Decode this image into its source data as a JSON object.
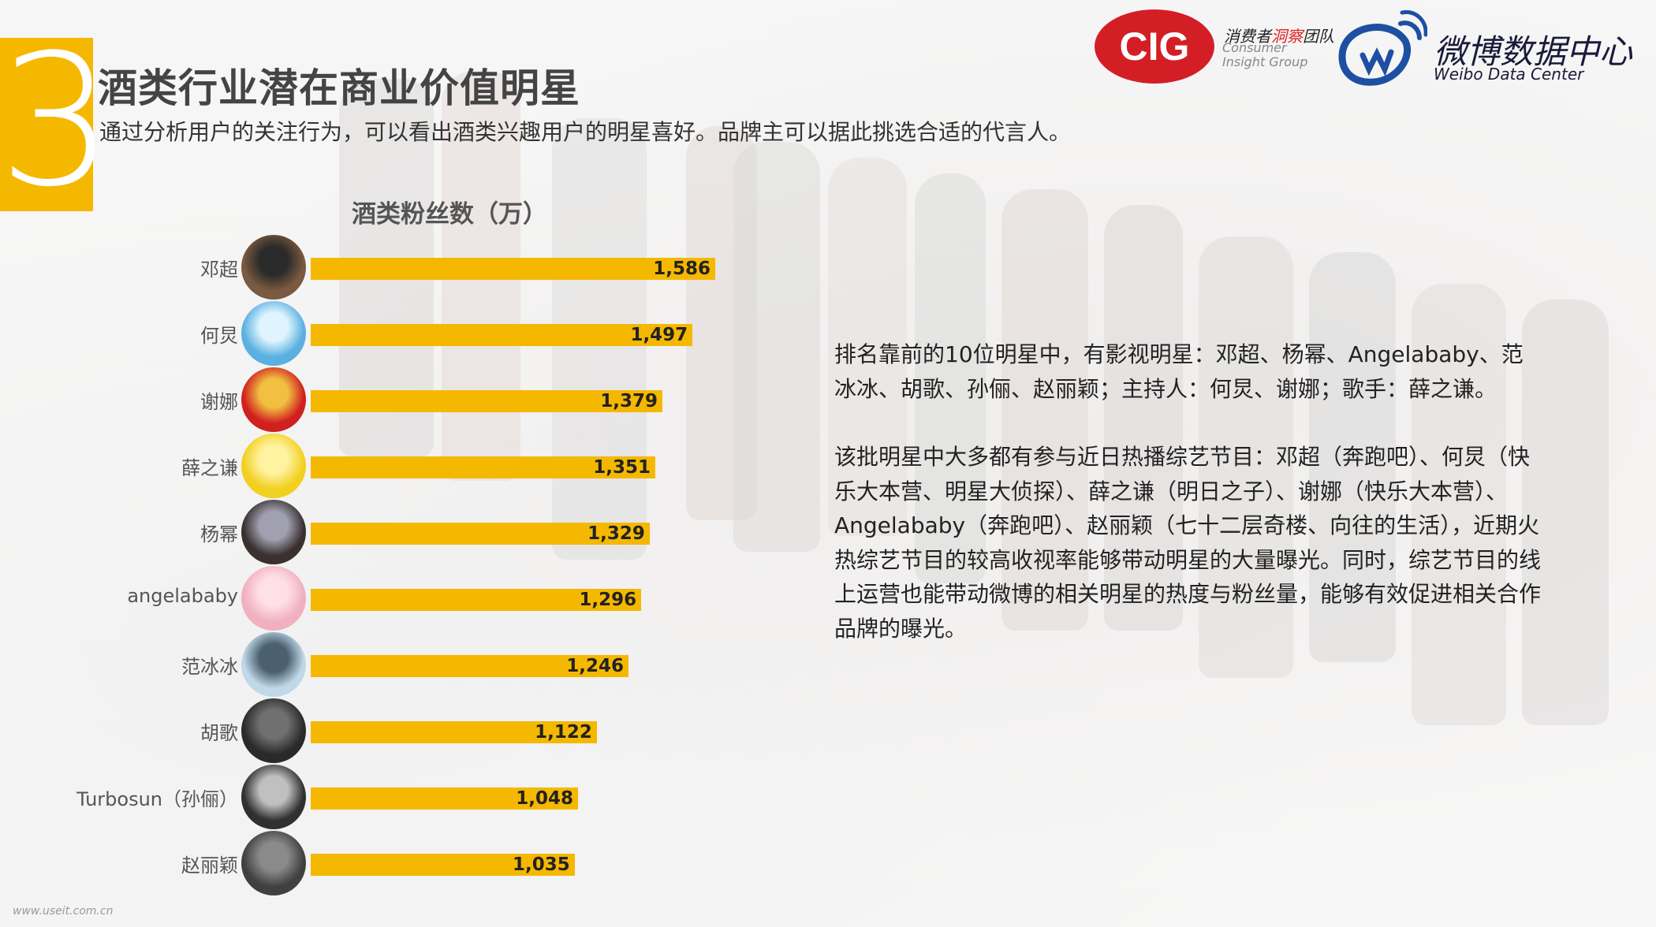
{
  "section": {
    "number": "3",
    "title": "酒类行业潜在商业价值明星",
    "subtitle": "通过分析用户的关注行为，可以看出酒类兴趣用户的明星喜好。品牌主可以据此挑选合适的代言人。"
  },
  "logos": {
    "cig_mark": "CIG",
    "cig_cn_a": "消费者",
    "cig_cn_b": "洞察",
    "cig_cn_c": "团队",
    "cig_en": "Consumer Insight Group",
    "weibo_cn": "微博数据中心",
    "weibo_en": "Weibo Data Center"
  },
  "colors": {
    "accent": "#f5b800",
    "text": "#222222"
  },
  "chart_data": {
    "type": "bar",
    "title": "酒类粉丝数（万）",
    "categories": [
      "邓超",
      "何炅",
      "谢娜",
      "薛之谦",
      "杨幂",
      "angelababy",
      "范冰冰",
      "胡歌",
      "Turbosun（孙俪）",
      "赵丽颖"
    ],
    "values": [
      1586,
      1497,
      1379,
      1351,
      1329,
      1296,
      1246,
      1122,
      1048,
      1035
    ],
    "value_labels": [
      "1,586",
      "1,497",
      "1,379",
      "1,351",
      "1,329",
      "1,296",
      "1,246",
      "1,122",
      "1,048",
      "1,035"
    ],
    "orientation": "horizontal"
  },
  "description": {
    "p1": "排名靠前的10位明星中，有影视明星：邓超、杨幂、Angelababy、范冰冰、胡歌、孙俪、赵丽颖；主持人：何炅、谢娜；歌手：薛之谦。",
    "p2": "该批明星中大多都有参与近日热播综艺节目：邓超（奔跑吧）、何炅（快乐大本营、明星大侦探）、薛之谦（明日之子）、谢娜（快乐大本营）、Angelababy（奔跑吧）、赵丽颖（七十二层奇楼、向往的生活），近期火热综艺节目的较高收视率能够带动明星的大量曝光。同时，综艺节目的线上运营也能带动微博的相关明星的热度与粉丝量，能够有效促进相关合作品牌的曝光。"
  },
  "watermark": "www.useit.com.cn"
}
